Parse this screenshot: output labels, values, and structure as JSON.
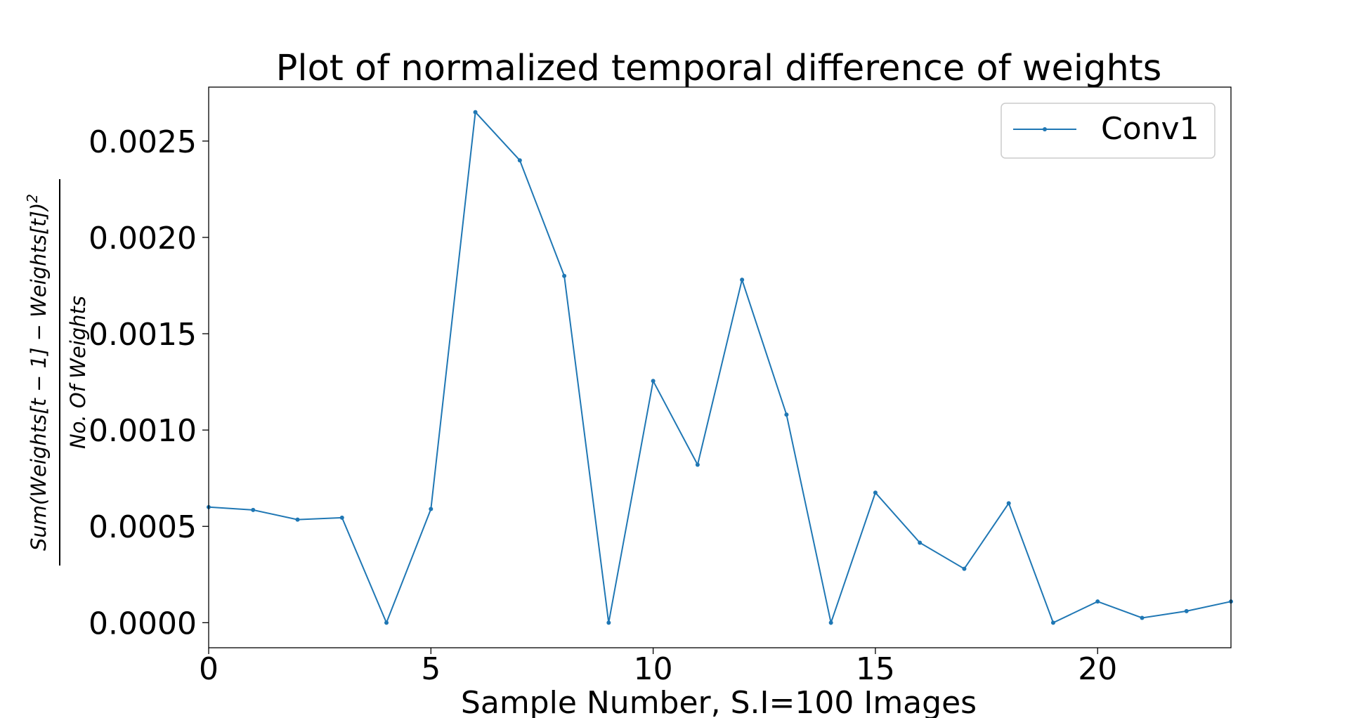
{
  "chart_data": {
    "type": "line",
    "title": "Plot of normalized temporal difference of weights",
    "xlabel": "Sample Number, S.I=100 Images",
    "ylabel_numerator": "Sum(Weights[t − 1] − Weights[t])",
    "ylabel_exponent": "2",
    "ylabel_denominator": "No.  Of Weights",
    "xlim": [
      0,
      23
    ],
    "ylim": [
      -0.00013,
      0.00278
    ],
    "x_ticks": [
      0,
      5,
      10,
      15,
      20
    ],
    "x_tick_labels": [
      "0",
      "5",
      "10",
      "15",
      "20"
    ],
    "y_ticks": [
      0.0,
      0.0005,
      0.001,
      0.0015,
      0.002,
      0.0025
    ],
    "y_tick_labels": [
      "0.0000",
      "0.0005",
      "0.0010",
      "0.0015",
      "0.0020",
      "0.0025"
    ],
    "grid": false,
    "legend_position": "top-right",
    "series": [
      {
        "name": "Conv1",
        "color": "#1f77b4",
        "marker": "point",
        "x": [
          0,
          1,
          2,
          3,
          4,
          5,
          6,
          7,
          8,
          9,
          10,
          11,
          12,
          13,
          14,
          15,
          16,
          17,
          18,
          19,
          20,
          21,
          22,
          23
        ],
        "values": [
          0.0006,
          0.000585,
          0.000535,
          0.000545,
          0.0,
          0.00059,
          0.00265,
          0.0024,
          0.0018,
          0.0,
          0.001255,
          0.00082,
          0.00178,
          0.00108,
          0.0,
          0.000675,
          0.000415,
          0.00028,
          0.00062,
          0.0,
          0.00011,
          2.5e-05,
          6e-05,
          0.00011
        ]
      }
    ]
  }
}
